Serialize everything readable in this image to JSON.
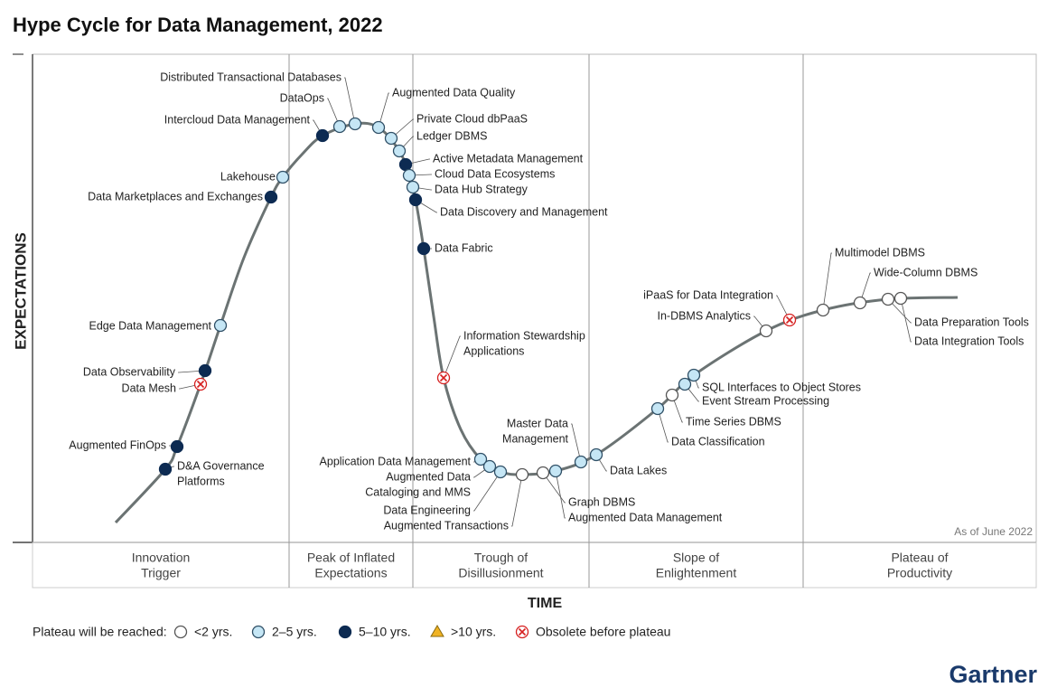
{
  "header": {
    "title": "Hype Cycle for Data Management, 2022"
  },
  "axes": {
    "y_label": "EXPECTATIONS",
    "x_label": "TIME"
  },
  "note": "As of June 2022",
  "phases": [
    {
      "lines": [
        "Innovation",
        "Trigger"
      ]
    },
    {
      "lines": [
        "Peak of Inflated",
        "Expectations"
      ]
    },
    {
      "lines": [
        "Trough of",
        "Disillusionment"
      ]
    },
    {
      "lines": [
        "Slope of",
        "Enlightenment"
      ]
    },
    {
      "lines": [
        "Plateau of",
        "Productivity"
      ]
    }
  ],
  "legend": {
    "label": "Plateau will be reached:",
    "items": [
      {
        "label": "<2 yrs.",
        "marker": "white"
      },
      {
        "label": "2–5 yrs.",
        "marker": "light"
      },
      {
        "label": "5–10 yrs.",
        "marker": "dark"
      },
      {
        "label": ">10 yrs.",
        "marker": "triangle"
      },
      {
        "label": "Obsolete before plateau",
        "marker": "obsolete"
      }
    ]
  },
  "items": [
    {
      "lines": [
        "D&A Governance",
        "Platforms"
      ],
      "status": "dark"
    },
    {
      "lines": [
        "Augmented FinOps"
      ],
      "status": "dark"
    },
    {
      "lines": [
        "Data Mesh"
      ],
      "status": "obsolete"
    },
    {
      "lines": [
        "Data Observability"
      ],
      "status": "dark"
    },
    {
      "lines": [
        "Edge Data Management"
      ],
      "status": "light"
    },
    {
      "lines": [
        "Data Marketplaces and Exchanges"
      ],
      "status": "dark"
    },
    {
      "lines": [
        "Lakehouse"
      ],
      "status": "light"
    },
    {
      "lines": [
        "Intercloud Data Management"
      ],
      "status": "dark"
    },
    {
      "lines": [
        "DataOps"
      ],
      "status": "light"
    },
    {
      "lines": [
        "Distributed Transactional Databases"
      ],
      "status": "light"
    },
    {
      "lines": [
        "Augmented Data Quality"
      ],
      "status": "light"
    },
    {
      "lines": [
        "Private Cloud dbPaaS"
      ],
      "status": "light"
    },
    {
      "lines": [
        "Ledger DBMS"
      ],
      "status": "light"
    },
    {
      "lines": [
        "Active Metadata Management"
      ],
      "status": "dark"
    },
    {
      "lines": [
        "Cloud Data Ecosystems"
      ],
      "status": "light"
    },
    {
      "lines": [
        "Data Hub Strategy"
      ],
      "status": "light"
    },
    {
      "lines": [
        "Data Discovery and Management"
      ],
      "status": "dark"
    },
    {
      "lines": [
        "Data Fabric"
      ],
      "status": "dark"
    },
    {
      "lines": [
        "Information Stewardship",
        "Applications"
      ],
      "status": "obsolete"
    },
    {
      "lines": [
        "Application Data Management"
      ],
      "status": "light"
    },
    {
      "lines": [
        "Augmented Data",
        "Cataloging and MMS"
      ],
      "status": "light"
    },
    {
      "lines": [
        "Data Engineering"
      ],
      "status": "light"
    },
    {
      "lines": [
        "Augmented Transactions"
      ],
      "status": "white"
    },
    {
      "lines": [
        "Graph DBMS"
      ],
      "status": "white"
    },
    {
      "lines": [
        "Augmented Data Management"
      ],
      "status": "light"
    },
    {
      "lines": [
        "Master Data",
        "Management"
      ],
      "status": "light"
    },
    {
      "lines": [
        "Data Lakes"
      ],
      "status": "light"
    },
    {
      "lines": [
        "Data Classification"
      ],
      "status": "light"
    },
    {
      "lines": [
        "Time Series DBMS"
      ],
      "status": "white"
    },
    {
      "lines": [
        "Event Stream Processing"
      ],
      "status": "light"
    },
    {
      "lines": [
        "SQL Interfaces to Object Stores"
      ],
      "status": "light"
    },
    {
      "lines": [
        "In-DBMS Analytics"
      ],
      "status": "white"
    },
    {
      "lines": [
        "iPaaS for Data Integration"
      ],
      "status": "obsolete"
    },
    {
      "lines": [
        "Multimodel DBMS"
      ],
      "status": "white"
    },
    {
      "lines": [
        "Wide-Column DBMS"
      ],
      "status": "white"
    },
    {
      "lines": [
        "Data Preparation Tools"
      ],
      "status": "white"
    },
    {
      "lines": [
        "Data Integration Tools"
      ],
      "status": "white"
    }
  ],
  "logo": "Gartner"
}
